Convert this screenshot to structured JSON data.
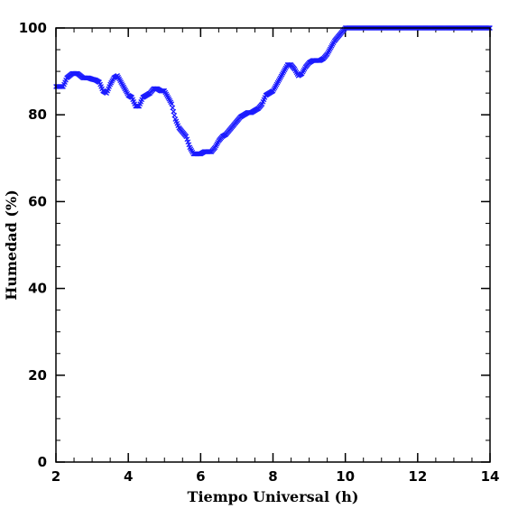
{
  "chart_data": {
    "type": "scatter",
    "title": "",
    "xlabel": "Tiempo Universal (h)",
    "ylabel": "Humedad (%)",
    "xlim": [
      2,
      14
    ],
    "ylim": [
      0,
      100
    ],
    "xticks": [
      2,
      4,
      6,
      8,
      10,
      12,
      14
    ],
    "yticks": [
      0,
      20,
      40,
      60,
      80,
      100
    ],
    "x_minor_step": 0.5,
    "y_minor_step": 5,
    "grid": false,
    "legend": "none",
    "marker": "x",
    "colors": {
      "series": "#1a1aff",
      "axes": "#000000",
      "background": "#ffffff"
    },
    "series": [
      {
        "x": [
          2.0,
          2.2,
          2.3,
          2.45,
          2.6,
          2.75,
          2.9,
          3.0,
          3.1,
          3.2,
          3.3,
          3.4,
          3.5,
          3.6,
          3.7,
          3.8,
          3.9,
          4.0,
          4.1,
          4.2,
          4.3,
          4.4,
          4.5,
          4.6,
          4.7,
          4.8,
          4.9,
          5.0,
          5.1,
          5.2,
          5.3,
          5.4,
          5.5,
          5.6,
          5.7,
          5.8,
          5.9,
          6.0,
          6.1,
          6.2,
          6.3,
          6.4,
          6.5,
          6.6,
          6.7,
          6.8,
          6.9,
          7.0,
          7.1,
          7.2,
          7.3,
          7.4,
          7.5,
          7.6,
          7.7,
          7.8,
          7.9,
          8.0,
          8.1,
          8.2,
          8.3,
          8.4,
          8.5,
          8.6,
          8.7,
          8.8,
          8.9,
          9.0,
          9.1,
          9.2,
          9.3,
          9.4,
          9.5,
          9.6,
          9.7,
          9.8,
          9.9,
          10.0,
          10.1,
          10.2,
          10.5,
          11.0,
          11.5,
          12.0,
          12.5,
          13.0,
          13.5,
          14.0
        ],
        "y": [
          86.5,
          86.5,
          88.5,
          89.5,
          89.5,
          88.5,
          88.5,
          88.2,
          88.0,
          87.5,
          85.5,
          85.0,
          87.0,
          88.5,
          89.0,
          87.5,
          86.0,
          84.5,
          84.0,
          82.0,
          82.0,
          84.0,
          84.5,
          85.0,
          86.0,
          86.0,
          85.5,
          85.5,
          84.0,
          82.5,
          79.0,
          77.0,
          76.0,
          75.0,
          72.5,
          71.0,
          71.0,
          71.0,
          71.5,
          71.5,
          71.5,
          72.5,
          74.0,
          75.0,
          75.5,
          76.5,
          77.5,
          78.5,
          79.5,
          80.0,
          80.5,
          80.5,
          81.0,
          81.5,
          82.5,
          84.5,
          85.0,
          85.5,
          87.0,
          88.5,
          90.0,
          91.5,
          91.5,
          90.5,
          89.0,
          89.5,
          91.0,
          92.0,
          92.5,
          92.5,
          92.5,
          93.0,
          94.0,
          95.5,
          97.0,
          98.0,
          99.0,
          100,
          100,
          100,
          100,
          100,
          100,
          100,
          100,
          100,
          100,
          100
        ]
      }
    ]
  }
}
